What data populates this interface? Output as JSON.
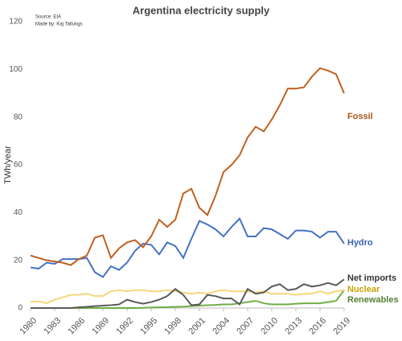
{
  "chart_data": {
    "type": "line",
    "title": "Argentina electricity supply",
    "source": "Source: EIA",
    "author": "Made by: Kaj Tallungs",
    "y_label": "TWh/year",
    "x": [
      1980,
      1981,
      1982,
      1983,
      1984,
      1985,
      1986,
      1987,
      1988,
      1989,
      1990,
      1991,
      1992,
      1993,
      1994,
      1995,
      1996,
      1997,
      1998,
      1999,
      2000,
      2001,
      2002,
      2003,
      2004,
      2005,
      2006,
      2007,
      2008,
      2009,
      2010,
      2011,
      2012,
      2013,
      2014,
      2015,
      2016,
      2017,
      2018,
      2019
    ],
    "xlim": [
      1980,
      2019
    ],
    "xticks": [
      1980,
      1983,
      1986,
      1989,
      1992,
      1995,
      1998,
      2001,
      2004,
      2007,
      2010,
      2013,
      2016,
      2019
    ],
    "ylim": [
      0,
      120
    ],
    "yticks": [
      0,
      20,
      40,
      60,
      80,
      100,
      120
    ],
    "series": [
      {
        "name": "Fossil",
        "color": "#c0601f",
        "label_color": "#a8541b",
        "values": [
          22,
          21,
          20,
          19.5,
          19,
          18,
          20.5,
          22,
          29.5,
          30.5,
          21,
          25,
          27.5,
          28.5,
          25.5,
          30,
          37,
          34,
          37,
          48,
          50,
          42,
          39,
          47,
          57,
          60,
          64,
          71.5,
          76,
          74,
          79,
          85,
          92,
          92,
          92.5,
          97,
          100.5,
          99.5,
          98,
          90
        ]
      },
      {
        "name": "Hydro",
        "color": "#4472c4",
        "label_color": "#3a63b0",
        "values": [
          17,
          16.5,
          19,
          18.5,
          20.5,
          20.5,
          20.5,
          21,
          15,
          13,
          17.5,
          16,
          19,
          24,
          27,
          26.5,
          22.5,
          27.5,
          26,
          21,
          29,
          36.5,
          35,
          33,
          30,
          34,
          37.5,
          30,
          30,
          33.5,
          33,
          31,
          29,
          32.5,
          32.5,
          32,
          29.5,
          32,
          32,
          27
        ]
      },
      {
        "name": "Net imports",
        "color": "#595959",
        "label_color": "#333333",
        "values": [
          0,
          0,
          0,
          0,
          0,
          0,
          0.3,
          0.5,
          0.8,
          1,
          1.2,
          1.5,
          3.5,
          2.5,
          1.8,
          2.5,
          3.5,
          5,
          8,
          5.5,
          1.2,
          1.5,
          5.5,
          5,
          4,
          4,
          1.5,
          8,
          6,
          6.5,
          9,
          10,
          7.5,
          8,
          10,
          9,
          9.5,
          10.5,
          9.5,
          12
        ]
      },
      {
        "name": "Nuclear",
        "color": "#f5d77a",
        "label_color": "#c9a100",
        "values": [
          2.5,
          2.8,
          2,
          3.5,
          4.5,
          5.5,
          5.5,
          6,
          5,
          5,
          7,
          7.5,
          7,
          7.5,
          7.5,
          7,
          7,
          7.5,
          7,
          6.5,
          6,
          6.5,
          6,
          7,
          7.5,
          7,
          7,
          7,
          6.5,
          7,
          6,
          6,
          6,
          5.5,
          6,
          6,
          7,
          6,
          7,
          7.5
        ]
      },
      {
        "name": "Renewables",
        "color": "#70ad47",
        "label_color": "#548235",
        "values": [
          0,
          0,
          0,
          0,
          0,
          0,
          0,
          0,
          0,
          0,
          0,
          0,
          0,
          0,
          0.1,
          0.2,
          0.3,
          0.4,
          0.5,
          0.6,
          0.8,
          1,
          1.2,
          1.3,
          1.5,
          1.5,
          2,
          2.5,
          3,
          2,
          1.5,
          1.5,
          1.5,
          1.8,
          2,
          2,
          2,
          2.5,
          3,
          7.5
        ]
      }
    ]
  }
}
